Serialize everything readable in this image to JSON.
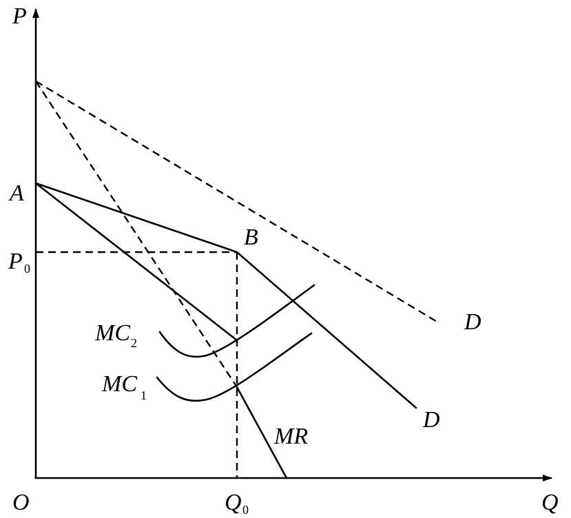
{
  "labels": {
    "p_axis": "P",
    "q_axis": "Q",
    "origin": "O",
    "point_a": "A",
    "point_b": "B",
    "p0_main": "P",
    "p0_sub": "0",
    "q0_main": "Q",
    "q0_sub": "0",
    "d_dashed": "D",
    "d_solid": "D",
    "mr": "MR",
    "mc2_main": "MC",
    "mc2_sub": "2",
    "mc1_main": "MC",
    "mc1_sub": "1"
  }
}
